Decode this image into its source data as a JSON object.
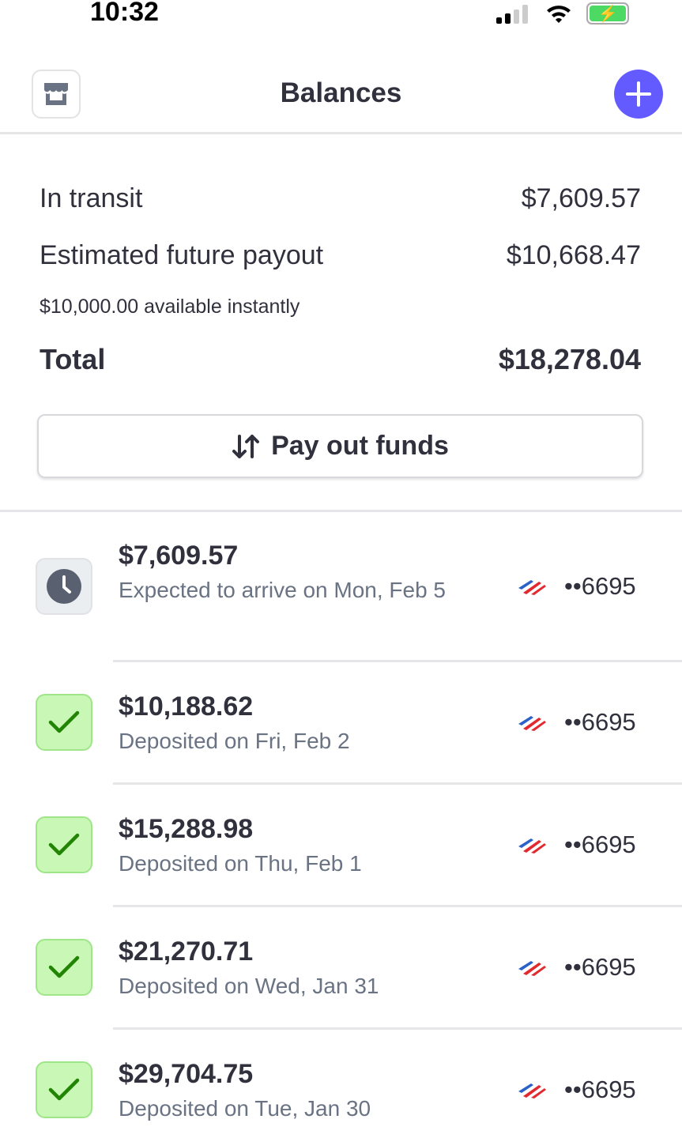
{
  "status_bar": {
    "time": "10:32"
  },
  "header": {
    "title": "Balances"
  },
  "summary": {
    "in_transit_label": "In transit",
    "in_transit_value": "$7,609.57",
    "future_label": "Estimated future payout",
    "future_value": "$10,668.47",
    "instant_note": "$10,000.00 available instantly",
    "total_label": "Total",
    "total_value": "$18,278.04"
  },
  "payout_button": {
    "label": "Pay out funds"
  },
  "colors": {
    "accent": "#635bff",
    "success_bg": "#c9f7b5",
    "success_check": "#228403"
  },
  "payouts": [
    {
      "amount": "$7,609.57",
      "status": "pending",
      "description": "Expected to arrive on Mon, Feb 5",
      "account": "••6695"
    },
    {
      "amount": "$10,188.62",
      "status": "paid",
      "description": "Deposited on Fri, Feb 2",
      "account": "••6695"
    },
    {
      "amount": "$15,288.98",
      "status": "paid",
      "description": "Deposited on Thu, Feb 1",
      "account": "••6695"
    },
    {
      "amount": "$21,270.71",
      "status": "paid",
      "description": "Deposited on Wed, Jan 31",
      "account": "••6695"
    },
    {
      "amount": "$29,704.75",
      "status": "paid",
      "description": "Deposited on Tue, Jan 30",
      "account": "••6695"
    }
  ]
}
